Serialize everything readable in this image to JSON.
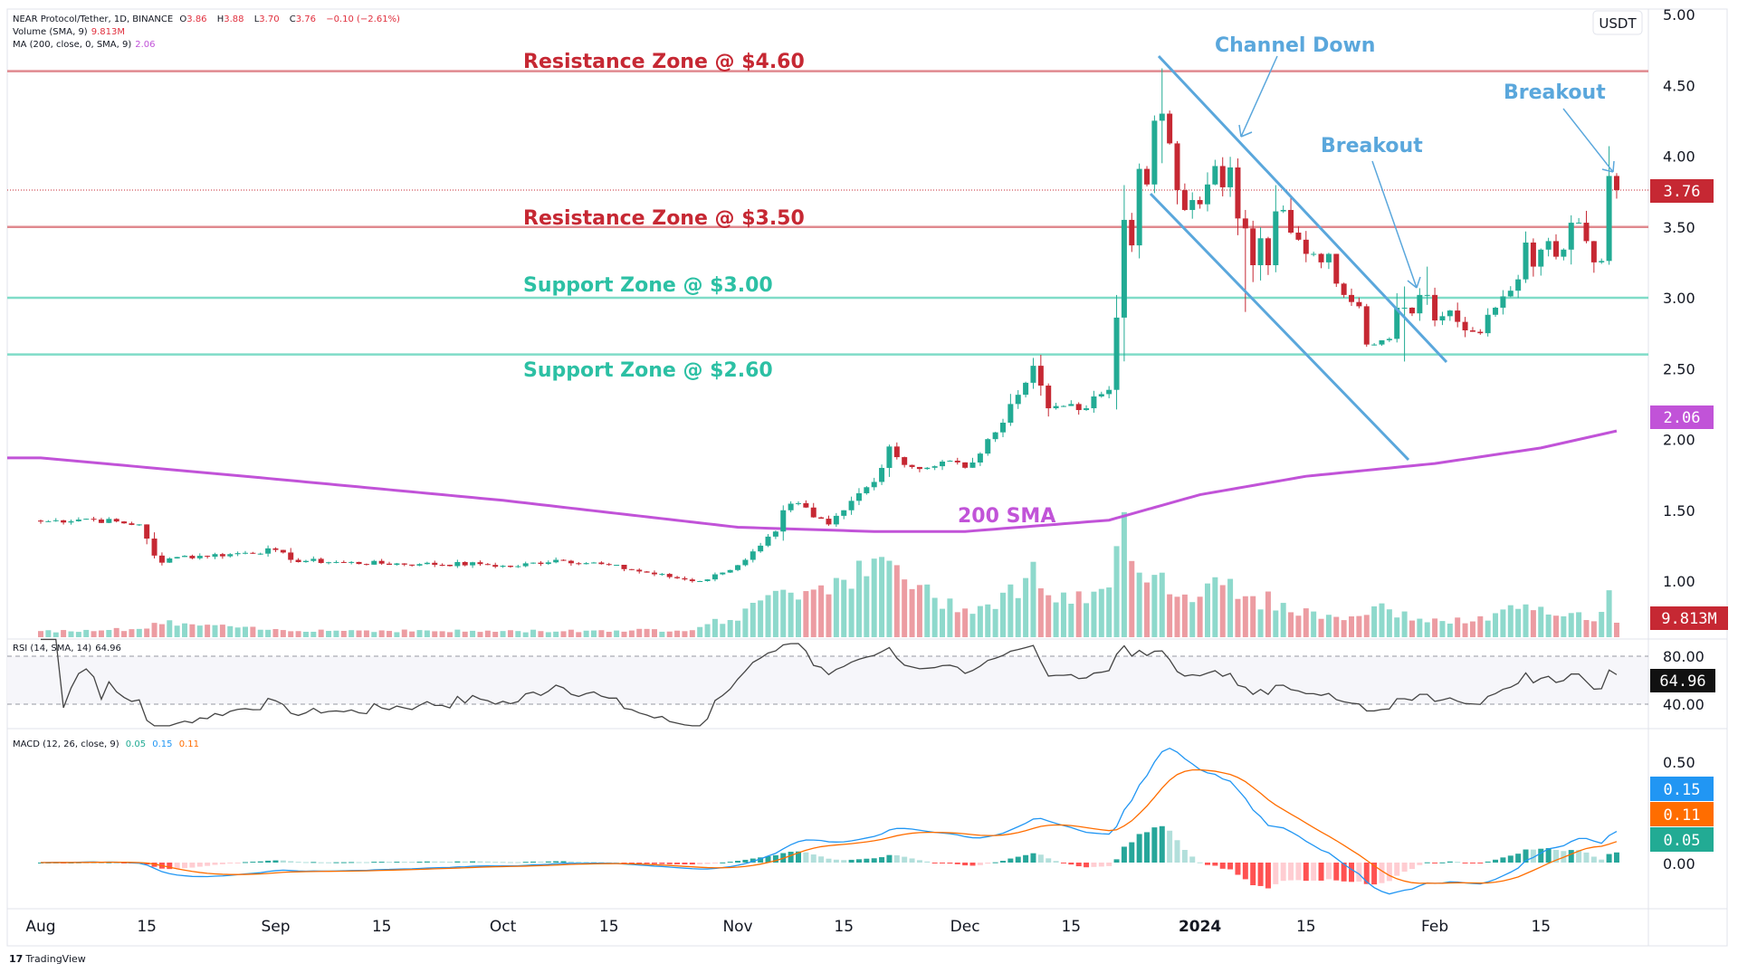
{
  "legend": {
    "symbol": "NEAR Protocol/Tether, 1D, BINANCE",
    "o_label": "O",
    "o": "3.86",
    "h_label": "H",
    "h": "3.88",
    "l_label": "L",
    "l": "3.70",
    "c_label": "C",
    "c": "3.76",
    "change": "−0.10 (−2.61%)",
    "volume_label": "Volume (SMA, 9)",
    "volume_value": "9.813M",
    "ma_label": "MA (200, close, 0, SMA, 9)",
    "ma_value": "2.06",
    "rsi_label": "RSI (14, SMA, 14)",
    "rsi_value": "64.96",
    "macd_label": "MACD (12, 26, close, 9)",
    "macd_value": "0.05",
    "macd_line_value": "0.15",
    "macd_signal_value": "0.11"
  },
  "logo": {
    "text": "TradingView",
    "mark": "17"
  },
  "axis": {
    "currency": "USDT",
    "price_ticks": [
      "5.00",
      "4.50",
      "4.00",
      "3.50",
      "3.00",
      "2.50",
      "2.00",
      "1.50",
      "1.00"
    ],
    "rsi_ticks": [
      "80.00",
      "40.00"
    ],
    "macd_ticks": [
      "0.50",
      "0.00"
    ],
    "badges": {
      "last_price": "3.76",
      "ma": "2.06",
      "volume": "9.813M",
      "rsi": "64.96",
      "macd": "0.15",
      "signal": "0.11",
      "hist": "0.05"
    }
  },
  "colors": {
    "up": "#22ab94",
    "down": "#c62833",
    "vol_up": "#8ed9cc",
    "vol_down": "#ec9ca2",
    "resistance": "#e0898f",
    "support": "#7fdcc8",
    "channel": "#5aa7dc",
    "sma": "#c153d8",
    "macd": "#2196f3",
    "signal": "#ff6d00"
  },
  "annotations": {
    "res460": "Resistance Zone @ $4.60",
    "res350": "Resistance Zone @ $3.50",
    "sup300": "Support Zone @ $3.00",
    "sup260": "Support Zone @ $2.60",
    "channel": "Channel Down",
    "breakout1": "Breakout",
    "breakout2": "Breakout",
    "sma": "200 SMA"
  },
  "chart_data": {
    "type": "candlestick",
    "title": "NEAR Protocol/Tether, 1D, BINANCE",
    "x_start": "2023-08-01",
    "x_ticks": [
      {
        "label": "Aug",
        "day": 0
      },
      {
        "label": "15",
        "day": 14
      },
      {
        "label": "Sep",
        "day": 31
      },
      {
        "label": "15",
        "day": 45
      },
      {
        "label": "Oct",
        "day": 61
      },
      {
        "label": "15",
        "day": 75
      },
      {
        "label": "Nov",
        "day": 92
      },
      {
        "label": "15",
        "day": 106
      },
      {
        "label": "Dec",
        "day": 122
      },
      {
        "label": "15",
        "day": 136
      },
      {
        "label": "2024",
        "day": 153
      },
      {
        "label": "15",
        "day": 167
      },
      {
        "label": "Feb",
        "day": 184
      },
      {
        "label": "15",
        "day": 198
      }
    ],
    "ylim": [
      0.8,
      5.0
    ],
    "levels": {
      "resistance": [
        4.6,
        3.5
      ],
      "support": [
        3.0,
        2.6
      ],
      "last": 3.76
    },
    "close_keypoints": [
      [
        0,
        1.42
      ],
      [
        6,
        1.44
      ],
      [
        13,
        1.4
      ],
      [
        14,
        1.3
      ],
      [
        15,
        1.18
      ],
      [
        16,
        1.13
      ],
      [
        18,
        1.17
      ],
      [
        25,
        1.19
      ],
      [
        31,
        1.22
      ],
      [
        33,
        1.15
      ],
      [
        40,
        1.13
      ],
      [
        50,
        1.12
      ],
      [
        58,
        1.12
      ],
      [
        62,
        1.1
      ],
      [
        68,
        1.15
      ],
      [
        74,
        1.12
      ],
      [
        78,
        1.08
      ],
      [
        84,
        1.02
      ],
      [
        87,
        1.0
      ],
      [
        90,
        1.06
      ],
      [
        93,
        1.15
      ],
      [
        95,
        1.25
      ],
      [
        97,
        1.35
      ],
      [
        98,
        1.5
      ],
      [
        100,
        1.55
      ],
      [
        102,
        1.45
      ],
      [
        104,
        1.4
      ],
      [
        106,
        1.5
      ],
      [
        108,
        1.62
      ],
      [
        110,
        1.7
      ],
      [
        112,
        1.95
      ],
      [
        114,
        1.82
      ],
      [
        117,
        1.8
      ],
      [
        120,
        1.85
      ],
      [
        122,
        1.8
      ],
      [
        124,
        1.9
      ],
      [
        126,
        2.05
      ],
      [
        128,
        2.25
      ],
      [
        130,
        2.4
      ],
      [
        131,
        2.52
      ],
      [
        132,
        2.38
      ],
      [
        133,
        2.22
      ],
      [
        136,
        2.25
      ],
      [
        138,
        2.22
      ],
      [
        140,
        2.32
      ],
      [
        141,
        2.35
      ],
      [
        142,
        2.86
      ],
      [
        143,
        3.55
      ],
      [
        144,
        3.37
      ],
      [
        145,
        3.91
      ],
      [
        146,
        3.8
      ],
      [
        147,
        4.25
      ],
      [
        148,
        4.3
      ],
      [
        149,
        4.09
      ],
      [
        150,
        3.76
      ],
      [
        151,
        3.62
      ],
      [
        152,
        3.69
      ],
      [
        153,
        3.66
      ],
      [
        154,
        3.8
      ],
      [
        155,
        3.93
      ],
      [
        156,
        3.78
      ],
      [
        157,
        3.92
      ],
      [
        158,
        3.56
      ],
      [
        159,
        3.49
      ],
      [
        160,
        3.23
      ],
      [
        161,
        3.42
      ],
      [
        162,
        3.23
      ],
      [
        163,
        3.61
      ],
      [
        164,
        3.62
      ],
      [
        165,
        3.46
      ],
      [
        166,
        3.41
      ],
      [
        167,
        3.31
      ],
      [
        168,
        3.31
      ],
      [
        169,
        3.25
      ],
      [
        170,
        3.31
      ],
      [
        171,
        3.1
      ],
      [
        172,
        3.02
      ],
      [
        173,
        2.97
      ],
      [
        174,
        2.94
      ],
      [
        175,
        2.67
      ],
      [
        176,
        2.67
      ],
      [
        177,
        2.7
      ],
      [
        178,
        2.71
      ],
      [
        179,
        2.93
      ],
      [
        180,
        2.93
      ],
      [
        181,
        2.89
      ],
      [
        182,
        3.02
      ],
      [
        183,
        3.02
      ],
      [
        184,
        2.84
      ],
      [
        185,
        2.87
      ],
      [
        186,
        2.91
      ],
      [
        187,
        2.83
      ],
      [
        188,
        2.77
      ],
      [
        189,
        2.76
      ],
      [
        190,
        2.75
      ],
      [
        191,
        2.88
      ],
      [
        192,
        2.93
      ],
      [
        193,
        3.01
      ],
      [
        194,
        3.05
      ],
      [
        195,
        3.13
      ],
      [
        196,
        3.39
      ],
      [
        197,
        3.22
      ],
      [
        198,
        3.34
      ],
      [
        199,
        3.4
      ],
      [
        200,
        3.29
      ],
      [
        201,
        3.34
      ],
      [
        202,
        3.53
      ],
      [
        203,
        3.53
      ],
      [
        204,
        3.4
      ],
      [
        205,
        3.25
      ],
      [
        206,
        3.26
      ],
      [
        207,
        3.86
      ],
      [
        208,
        3.76
      ]
    ],
    "special_wicks": [
      [
        148,
        4.62,
        3.95
      ],
      [
        159,
        3.62,
        2.9
      ],
      [
        183,
        3.22,
        2.95
      ],
      [
        180,
        3.08,
        2.55
      ]
    ],
    "volume_unit": "M",
    "volume_keypoints": [
      [
        0,
        4
      ],
      [
        14,
        6
      ],
      [
        16,
        10
      ],
      [
        30,
        5
      ],
      [
        60,
        4
      ],
      [
        85,
        5
      ],
      [
        92,
        14
      ],
      [
        96,
        25
      ],
      [
        98,
        40
      ],
      [
        100,
        30
      ],
      [
        104,
        38
      ],
      [
        110,
        45
      ],
      [
        112,
        50
      ],
      [
        118,
        25
      ],
      [
        124,
        20
      ],
      [
        128,
        30
      ],
      [
        131,
        45
      ],
      [
        134,
        25
      ],
      [
        138,
        25
      ],
      [
        141,
        30
      ],
      [
        142,
        80
      ],
      [
        143,
        105
      ],
      [
        144,
        55
      ],
      [
        146,
        45
      ],
      [
        148,
        40
      ],
      [
        150,
        30
      ],
      [
        152,
        25
      ],
      [
        155,
        50
      ],
      [
        158,
        25
      ],
      [
        162,
        25
      ],
      [
        166,
        18
      ],
      [
        172,
        12
      ],
      [
        176,
        20
      ],
      [
        180,
        15
      ],
      [
        185,
        10
      ],
      [
        190,
        12
      ],
      [
        195,
        20
      ],
      [
        200,
        15
      ],
      [
        206,
        14
      ],
      [
        207,
        35
      ],
      [
        208,
        9.8
      ]
    ],
    "sma200_keypoints": [
      [
        0,
        1.87
      ],
      [
        31,
        1.72
      ],
      [
        61,
        1.57
      ],
      [
        92,
        1.38
      ],
      [
        110,
        1.35
      ],
      [
        122,
        1.35
      ],
      [
        141,
        1.43
      ],
      [
        153,
        1.61
      ],
      [
        167,
        1.74
      ],
      [
        184,
        1.83
      ],
      [
        198,
        1.94
      ],
      [
        208,
        2.06
      ]
    ],
    "rsi": {
      "period": 14,
      "upper": 80,
      "lower": 40,
      "last": 64.96
    },
    "macd": {
      "fast": 12,
      "slow": 26,
      "signal": 9,
      "last_hist": 0.05,
      "last_macd": 0.15,
      "last_signal": 0.11
    }
  }
}
